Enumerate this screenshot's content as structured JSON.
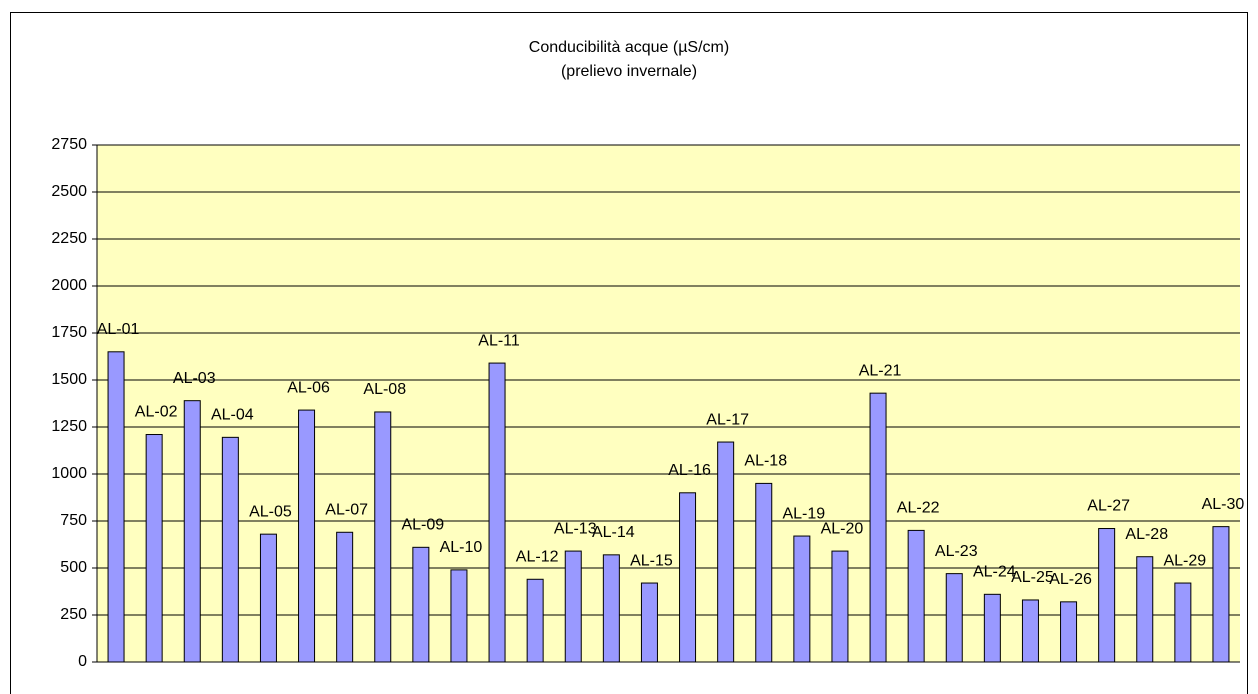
{
  "chart_data": {
    "type": "bar",
    "title": "Conducibilità acque (µS/cm)",
    "subtitle": "(prelievo invernale)",
    "categories": [
      "AL-01",
      "AL-02",
      "AL-03",
      "AL-04",
      "AL-05",
      "AL-06",
      "AL-07",
      "AL-08",
      "AL-09",
      "AL-10",
      "AL-11",
      "AL-12",
      "AL-13",
      "AL-14",
      "AL-15",
      "AL-16",
      "AL-17",
      "AL-18",
      "AL-19",
      "AL-20",
      "AL-21",
      "AL-22",
      "AL-23",
      "AL-24",
      "AL-25",
      "AL-26",
      "AL-27",
      "AL-28",
      "AL-29",
      "AL-30"
    ],
    "values": [
      1650,
      1210,
      1390,
      1195,
      680,
      1340,
      690,
      1330,
      610,
      490,
      1590,
      440,
      590,
      570,
      420,
      900,
      1170,
      950,
      670,
      590,
      1430,
      700,
      470,
      360,
      330,
      320,
      710,
      560,
      420,
      720
    ],
    "color": "#9999ff",
    "ylim": [
      0,
      2750
    ],
    "yticks": [
      0,
      250,
      500,
      750,
      1000,
      1250,
      1500,
      1750,
      2000,
      2250,
      2500,
      2750
    ],
    "grid": true
  }
}
